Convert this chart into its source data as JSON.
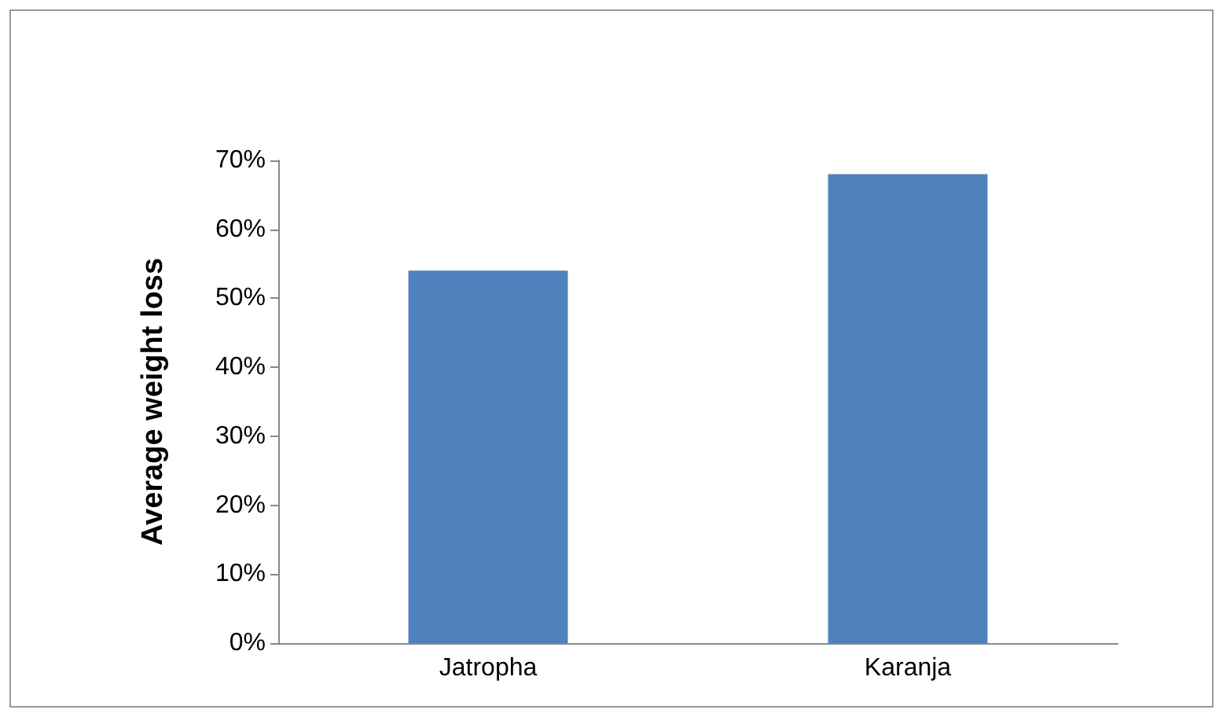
{
  "chart_data": {
    "type": "bar",
    "ylabel": "Average weight loss",
    "categories": [
      "Jatropha",
      "Karanja"
    ],
    "values": [
      54,
      68
    ],
    "color": "#4f81bd",
    "ylim": [
      0,
      70
    ],
    "yticks": [
      {
        "value": 0,
        "label": "0%"
      },
      {
        "value": 10,
        "label": "10%"
      },
      {
        "value": 20,
        "label": "20%"
      },
      {
        "value": 30,
        "label": "30%"
      },
      {
        "value": 40,
        "label": "40%"
      },
      {
        "value": 50,
        "label": "50%"
      },
      {
        "value": 60,
        "label": "60%"
      },
      {
        "value": 70,
        "label": "70%"
      }
    ],
    "grid": false
  }
}
